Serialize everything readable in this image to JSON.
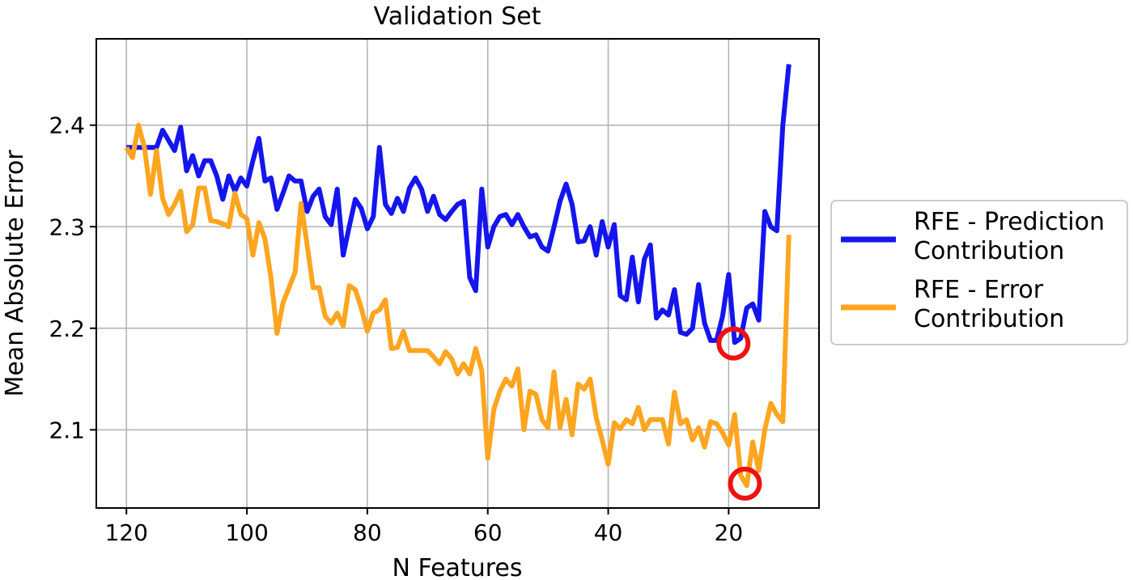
{
  "chart_data": {
    "type": "line",
    "title": "Validation Set",
    "xlabel": "N Features",
    "ylabel": "Mean Absolute Error",
    "xlim": [
      125,
      5
    ],
    "ylim": [
      2.023,
      2.485
    ],
    "x_inverted": true,
    "xticks": [
      120,
      100,
      80,
      60,
      40,
      20
    ],
    "yticks": [
      2.1,
      2.2,
      2.3,
      2.4
    ],
    "grid": true,
    "legend": "right, outside plot",
    "series": [
      {
        "name": "RFE - Prediction Contribution",
        "color": "#1515ee",
        "x": [
          120,
          119,
          118,
          117,
          116,
          115,
          114,
          113,
          112,
          111,
          110,
          109,
          108,
          107,
          106,
          105,
          104,
          103,
          102,
          101,
          100,
          99,
          98,
          97,
          96,
          95,
          94,
          93,
          92,
          91,
          90,
          89,
          88,
          87,
          86,
          85,
          84,
          83,
          82,
          81,
          80,
          79,
          78,
          77,
          76,
          75,
          74,
          73,
          72,
          71,
          70,
          69,
          68,
          67,
          66,
          65,
          64,
          63,
          62,
          61,
          60,
          59,
          58,
          57,
          56,
          55,
          54,
          53,
          52,
          51,
          50,
          49,
          48,
          47,
          46,
          45,
          44,
          43,
          42,
          41,
          40,
          39,
          38,
          37,
          36,
          35,
          34,
          33,
          32,
          31,
          30,
          29,
          28,
          27,
          26,
          25,
          24,
          23,
          22,
          21,
          20,
          19,
          18,
          17,
          16,
          15,
          14,
          13,
          12,
          11,
          10
        ],
        "y": [
          2.378,
          2.378,
          2.378,
          2.378,
          2.378,
          2.378,
          2.395,
          2.385,
          2.375,
          2.398,
          2.355,
          2.37,
          2.35,
          2.365,
          2.365,
          2.35,
          2.327,
          2.35,
          2.335,
          2.348,
          2.34,
          2.365,
          2.387,
          2.345,
          2.348,
          2.317,
          2.333,
          2.35,
          2.345,
          2.345,
          2.315,
          2.33,
          2.337,
          2.31,
          2.302,
          2.337,
          2.272,
          2.3,
          2.327,
          2.318,
          2.298,
          2.31,
          2.378,
          2.322,
          2.313,
          2.328,
          2.315,
          2.338,
          2.348,
          2.337,
          2.315,
          2.33,
          2.312,
          2.307,
          2.315,
          2.322,
          2.325,
          2.25,
          2.237,
          2.337,
          2.28,
          2.3,
          2.31,
          2.312,
          2.302,
          2.312,
          2.3,
          2.29,
          2.292,
          2.28,
          2.276,
          2.3,
          2.325,
          2.342,
          2.322,
          2.285,
          2.286,
          2.3,
          2.272,
          2.305,
          2.28,
          2.302,
          2.232,
          2.228,
          2.27,
          2.226,
          2.268,
          2.282,
          2.21,
          2.218,
          2.213,
          2.238,
          2.196,
          2.194,
          2.2,
          2.243,
          2.205,
          2.188,
          2.188,
          2.212,
          2.253,
          2.186,
          2.19,
          2.22,
          2.224,
          2.208,
          2.315,
          2.3,
          2.296,
          2.4,
          2.46
        ]
      },
      {
        "name": "RFE - Error Contribution",
        "color": "#ffa51f",
        "x": [
          120,
          119,
          118,
          117,
          116,
          115,
          114,
          113,
          112,
          111,
          110,
          109,
          108,
          107,
          106,
          105,
          104,
          103,
          102,
          101,
          100,
          99,
          98,
          97,
          96,
          95,
          94,
          93,
          92,
          91,
          90,
          89,
          88,
          87,
          86,
          85,
          84,
          83,
          82,
          81,
          80,
          79,
          78,
          77,
          76,
          75,
          74,
          73,
          72,
          71,
          70,
          69,
          68,
          67,
          66,
          65,
          64,
          63,
          62,
          61,
          60,
          59,
          58,
          57,
          56,
          55,
          54,
          53,
          52,
          51,
          50,
          49,
          48,
          47,
          46,
          45,
          44,
          43,
          42,
          41,
          40,
          39,
          38,
          37,
          36,
          35,
          34,
          33,
          32,
          31,
          30,
          29,
          28,
          27,
          26,
          25,
          24,
          23,
          22,
          21,
          20,
          19,
          18,
          17,
          16,
          15,
          14,
          13,
          12,
          11,
          10
        ],
        "y": [
          2.378,
          2.368,
          2.4,
          2.378,
          2.332,
          2.375,
          2.328,
          2.312,
          2.322,
          2.335,
          2.295,
          2.302,
          2.338,
          2.338,
          2.306,
          2.305,
          2.303,
          2.3,
          2.333,
          2.312,
          2.308,
          2.272,
          2.304,
          2.288,
          2.25,
          2.195,
          2.225,
          2.24,
          2.255,
          2.323,
          2.282,
          2.24,
          2.24,
          2.212,
          2.205,
          2.215,
          2.202,
          2.242,
          2.238,
          2.22,
          2.197,
          2.215,
          2.218,
          2.228,
          2.18,
          2.181,
          2.197,
          2.178,
          2.178,
          2.178,
          2.178,
          2.172,
          2.165,
          2.177,
          2.17,
          2.155,
          2.165,
          2.155,
          2.18,
          2.158,
          2.072,
          2.12,
          2.138,
          2.15,
          2.143,
          2.16,
          2.1,
          2.138,
          2.135,
          2.11,
          2.102,
          2.157,
          2.102,
          2.13,
          2.095,
          2.145,
          2.14,
          2.15,
          2.112,
          2.09,
          2.066,
          2.107,
          2.101,
          2.11,
          2.106,
          2.122,
          2.1,
          2.11,
          2.11,
          2.11,
          2.086,
          2.137,
          2.106,
          2.11,
          2.09,
          2.102,
          2.083,
          2.108,
          2.106,
          2.097,
          2.085,
          2.115,
          2.055,
          2.045,
          2.088,
          2.06,
          2.1,
          2.126,
          2.115,
          2.108,
          2.292
        ]
      }
    ],
    "annotations": [
      {
        "type": "circle",
        "color": "#ee1111",
        "x": 19.2,
        "y": 2.185
      },
      {
        "type": "circle",
        "color": "#ee1111",
        "x": 17.3,
        "y": 2.047
      }
    ]
  }
}
